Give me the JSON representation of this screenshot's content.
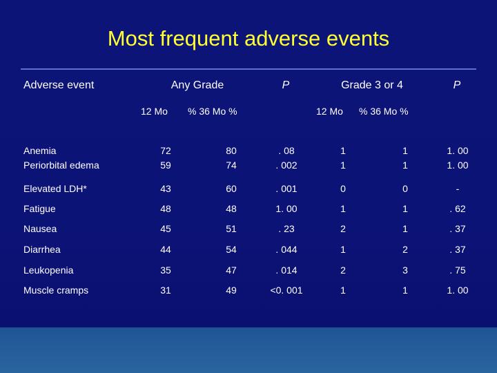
{
  "title": "Most frequent adverse events",
  "header": {
    "adverse_event": "Adverse event",
    "any_grade": "Any Grade",
    "p1": "P",
    "grade34": "Grade 3 or 4",
    "p2": "P"
  },
  "subheader": {
    "any_12mo": "12 Mo",
    "any_36mo": "%   36 Mo   %",
    "g34_12mo": "12 Mo",
    "g34_36mo": "%   36 Mo   %"
  },
  "rows": [
    {
      "event": "Anemia",
      "any12": "72",
      "any36": "80",
      "p1": ". 08",
      "g12": "1",
      "g36": "1",
      "p2": "1. 00"
    },
    {
      "event": "Periorbital   edema",
      "any12": "59",
      "any36": "74",
      "p1": ". 002",
      "g12": "1",
      "g36": "1",
      "p2": "1. 00"
    },
    {
      "event": "Elevated LDH*",
      "any12": "43",
      "any36": "60",
      "p1": ". 001",
      "g12": "0",
      "g36": "0",
      "p2": "-"
    },
    {
      "event": "Fatigue",
      "any12": "48",
      "any36": "48",
      "p1": "1. 00",
      "g12": "1",
      "g36": "1",
      "p2": ". 62"
    },
    {
      "event": "Nausea",
      "any12": "45",
      "any36": "51",
      "p1": ". 23",
      "g12": "2",
      "g36": "1",
      "p2": ". 37"
    },
    {
      "event": "Diarrhea",
      "any12": "44",
      "any36": "54",
      "p1": ". 044",
      "g12": "1",
      "g36": "2",
      "p2": ". 37"
    },
    {
      "event": "Leukopenia",
      "any12": "35",
      "any36": "47",
      "p1": ". 014",
      "g12": "2",
      "g36": "3",
      "p2": ". 75"
    },
    {
      "event": "Muscle cramps",
      "any12": "31",
      "any36": "49",
      "p1": "<0. 001",
      "g12": "1",
      "g36": "1",
      "p2": "1. 00"
    }
  ]
}
